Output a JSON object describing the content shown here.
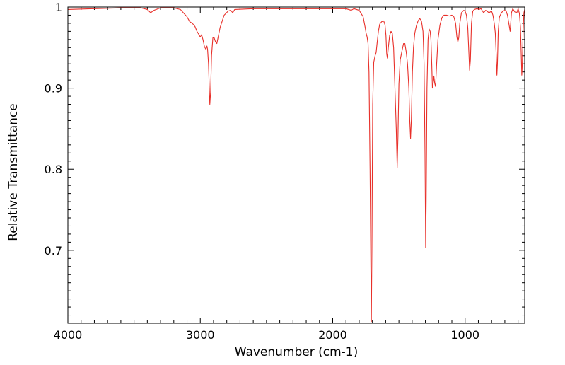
{
  "chart_data": {
    "type": "line",
    "title": "",
    "xlabel": "Wavenumber (cm-1)",
    "ylabel": "Relative Transmittance",
    "xlim": [
      4000,
      550
    ],
    "ylim": [
      0.61,
      1.0
    ],
    "x_inverted": true,
    "grid": false,
    "legend": "none",
    "x_ticks": [
      {
        "value": 4000,
        "label": "4000"
      },
      {
        "value": 3000,
        "label": "3000"
      },
      {
        "value": 2000,
        "label": "2000"
      },
      {
        "value": 1000,
        "label": "1000"
      }
    ],
    "y_ticks": [
      {
        "value": 1.0,
        "label": "1"
      },
      {
        "value": 0.9,
        "label": "0.9"
      },
      {
        "value": 0.8,
        "label": "0.8"
      },
      {
        "value": 0.7,
        "label": "0.7"
      }
    ],
    "series": [
      {
        "color": "#e8302a",
        "points": [
          [
            4000,
            0.997
          ],
          [
            3800,
            0.998
          ],
          [
            3600,
            0.999
          ],
          [
            3450,
            0.999
          ],
          [
            3400,
            0.997
          ],
          [
            3375,
            0.993
          ],
          [
            3350,
            0.996
          ],
          [
            3300,
            0.999
          ],
          [
            3200,
            0.999
          ],
          [
            3150,
            0.997
          ],
          [
            3100,
            0.988
          ],
          [
            3080,
            0.982
          ],
          [
            3060,
            0.98
          ],
          [
            3040,
            0.976
          ],
          [
            3025,
            0.97
          ],
          [
            3010,
            0.966
          ],
          [
            3000,
            0.963
          ],
          [
            2990,
            0.966
          ],
          [
            2980,
            0.96
          ],
          [
            2968,
            0.951
          ],
          [
            2958,
            0.948
          ],
          [
            2950,
            0.952
          ],
          [
            2945,
            0.948
          ],
          [
            2938,
            0.93
          ],
          [
            2932,
            0.9
          ],
          [
            2928,
            0.88
          ],
          [
            2922,
            0.895
          ],
          [
            2915,
            0.94
          ],
          [
            2905,
            0.962
          ],
          [
            2895,
            0.962
          ],
          [
            2885,
            0.957
          ],
          [
            2875,
            0.955
          ],
          [
            2865,
            0.963
          ],
          [
            2850,
            0.975
          ],
          [
            2820,
            0.99
          ],
          [
            2790,
            0.995
          ],
          [
            2770,
            0.996
          ],
          [
            2755,
            0.993
          ],
          [
            2740,
            0.997
          ],
          [
            2600,
            0.998
          ],
          [
            2400,
            0.998
          ],
          [
            2200,
            0.998
          ],
          [
            2000,
            0.998
          ],
          [
            1900,
            0.998
          ],
          [
            1860,
            0.996
          ],
          [
            1840,
            0.998
          ],
          [
            1800,
            0.996
          ],
          [
            1770,
            0.988
          ],
          [
            1755,
            0.975
          ],
          [
            1748,
            0.968
          ],
          [
            1740,
            0.963
          ],
          [
            1733,
            0.955
          ],
          [
            1726,
            0.92
          ],
          [
            1718,
            0.8
          ],
          [
            1712,
            0.68
          ],
          [
            1708,
            0.612
          ],
          [
            1704,
            0.7
          ],
          [
            1698,
            0.88
          ],
          [
            1690,
            0.932
          ],
          [
            1680,
            0.94
          ],
          [
            1672,
            0.944
          ],
          [
            1665,
            0.955
          ],
          [
            1655,
            0.97
          ],
          [
            1645,
            0.979
          ],
          [
            1630,
            0.982
          ],
          [
            1615,
            0.983
          ],
          [
            1605,
            0.978
          ],
          [
            1598,
            0.965
          ],
          [
            1592,
            0.942
          ],
          [
            1587,
            0.937
          ],
          [
            1580,
            0.95
          ],
          [
            1570,
            0.965
          ],
          [
            1560,
            0.97
          ],
          [
            1550,
            0.968
          ],
          [
            1540,
            0.95
          ],
          [
            1530,
            0.9
          ],
          [
            1520,
            0.85
          ],
          [
            1513,
            0.802
          ],
          [
            1507,
            0.84
          ],
          [
            1500,
            0.905
          ],
          [
            1490,
            0.935
          ],
          [
            1478,
            0.945
          ],
          [
            1465,
            0.955
          ],
          [
            1455,
            0.955
          ],
          [
            1445,
            0.945
          ],
          [
            1435,
            0.93
          ],
          [
            1425,
            0.9
          ],
          [
            1418,
            0.86
          ],
          [
            1412,
            0.838
          ],
          [
            1406,
            0.862
          ],
          [
            1398,
            0.92
          ],
          [
            1390,
            0.95
          ],
          [
            1380,
            0.968
          ],
          [
            1368,
            0.977
          ],
          [
            1355,
            0.983
          ],
          [
            1343,
            0.986
          ],
          [
            1330,
            0.983
          ],
          [
            1318,
            0.97
          ],
          [
            1310,
            0.93
          ],
          [
            1303,
            0.82
          ],
          [
            1298,
            0.703
          ],
          [
            1294,
            0.76
          ],
          [
            1288,
            0.9
          ],
          [
            1280,
            0.96
          ],
          [
            1272,
            0.973
          ],
          [
            1264,
            0.97
          ],
          [
            1258,
            0.96
          ],
          [
            1252,
            0.93
          ],
          [
            1247,
            0.9
          ],
          [
            1242,
            0.905
          ],
          [
            1236,
            0.915
          ],
          [
            1230,
            0.906
          ],
          [
            1223,
            0.902
          ],
          [
            1215,
            0.93
          ],
          [
            1205,
            0.96
          ],
          [
            1190,
            0.978
          ],
          [
            1175,
            0.987
          ],
          [
            1160,
            0.99
          ],
          [
            1140,
            0.99
          ],
          [
            1120,
            0.989
          ],
          [
            1100,
            0.99
          ],
          [
            1085,
            0.988
          ],
          [
            1072,
            0.98
          ],
          [
            1062,
            0.963
          ],
          [
            1055,
            0.957
          ],
          [
            1048,
            0.962
          ],
          [
            1040,
            0.98
          ],
          [
            1028,
            0.993
          ],
          [
            1010,
            0.996
          ],
          [
            1000,
            0.995
          ],
          [
            990,
            0.99
          ],
          [
            980,
            0.975
          ],
          [
            972,
            0.945
          ],
          [
            966,
            0.922
          ],
          [
            960,
            0.935
          ],
          [
            952,
            0.98
          ],
          [
            942,
            0.995
          ],
          [
            930,
            0.997
          ],
          [
            910,
            0.998
          ],
          [
            895,
            0.997
          ],
          [
            880,
            0.998
          ],
          [
            860,
            0.993
          ],
          [
            845,
            0.996
          ],
          [
            835,
            0.995
          ],
          [
            820,
            0.993
          ],
          [
            800,
            0.995
          ],
          [
            790,
            0.99
          ],
          [
            780,
            0.98
          ],
          [
            772,
            0.968
          ],
          [
            765,
            0.94
          ],
          [
            760,
            0.916
          ],
          [
            756,
            0.93
          ],
          [
            750,
            0.97
          ],
          [
            742,
            0.987
          ],
          [
            735,
            0.99
          ],
          [
            725,
            0.993
          ],
          [
            715,
            0.995
          ],
          [
            700,
            0.996
          ],
          [
            690,
            0.995
          ],
          [
            680,
            0.99
          ],
          [
            670,
            0.98
          ],
          [
            665,
            0.975
          ],
          [
            660,
            0.97
          ],
          [
            650,
            0.993
          ],
          [
            640,
            0.998
          ],
          [
            625,
            0.994
          ],
          [
            610,
            0.993
          ],
          [
            600,
            0.998
          ],
          [
            590,
            0.992
          ],
          [
            582,
            0.975
          ],
          [
            576,
            0.94
          ],
          [
            572,
            0.916
          ],
          [
            568,
            0.93
          ],
          [
            562,
            0.97
          ],
          [
            556,
            0.993
          ],
          [
            550,
            0.997
          ]
        ]
      }
    ]
  }
}
